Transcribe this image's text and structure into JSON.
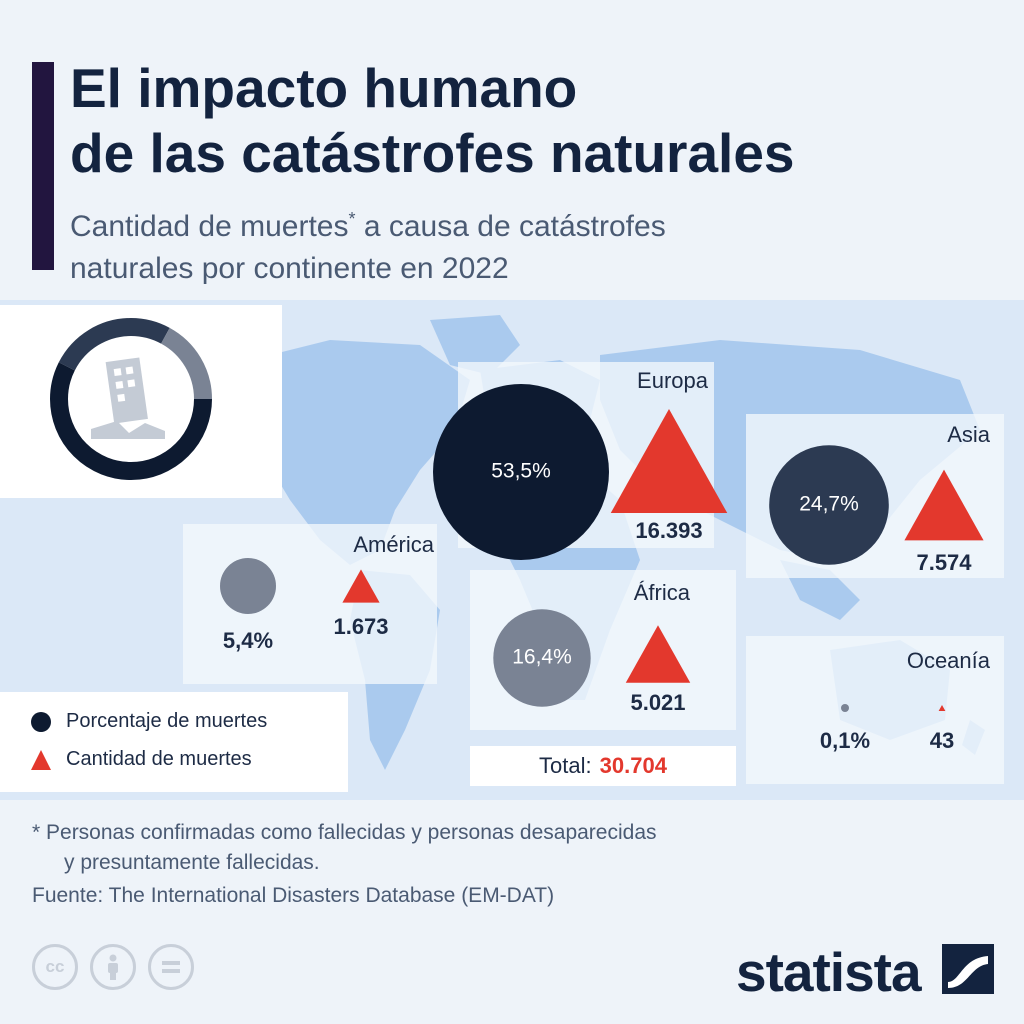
{
  "header": {
    "title_line1": "El impacto humano",
    "title_line2": "de las catástrofes naturales",
    "subtitle_part1": "Cantidad de muertes",
    "subtitle_marker": "*",
    "subtitle_part2": " a causa de catástrofes",
    "subtitle_line2": "naturales por continente en 2022"
  },
  "legend": {
    "percent_label": "Porcentaje de muertes",
    "count_label": "Cantidad de muertes"
  },
  "total": {
    "label": "Total:",
    "value": "30.704"
  },
  "footnote": {
    "line1": "* Personas confirmadas como fallecidas y personas desaparecidas",
    "line2": "y presuntamente fallecidas."
  },
  "source": "Fuente: The International Disasters Database (EM-DAT)",
  "brand": "statista",
  "license_icons": [
    "cc-icon",
    "attribution-icon",
    "no-derivatives-icon"
  ],
  "colors": {
    "title": "#13233f",
    "accent_bar": "#22153f",
    "triangle": "#e3382d",
    "circle_europe": "#0d1a30",
    "circle_asia": "#2c3a52",
    "circle_africa": "#7a8394",
    "circle_america": "#7a8394",
    "circle_oceania": "#7a8394",
    "map_land": "#aacaee",
    "map_bg": "#dbe8f7"
  },
  "chart_data": {
    "type": "bubble-map",
    "title": "El impacto humano de las catástrofes naturales",
    "metrics": [
      "Porcentaje de muertes",
      "Cantidad de muertes"
    ],
    "total_deaths": 30704,
    "series": [
      {
        "name": "Europa",
        "percent": 53.5,
        "percent_label": "53,5%",
        "deaths": 16393,
        "deaths_label": "16.393"
      },
      {
        "name": "Asia",
        "percent": 24.7,
        "percent_label": "24,7%",
        "deaths": 7574,
        "deaths_label": "7.574"
      },
      {
        "name": "África",
        "percent": 16.4,
        "percent_label": "16,4%",
        "deaths": 5021,
        "deaths_label": "5.021"
      },
      {
        "name": "América",
        "percent": 5.4,
        "percent_label": "5,4%",
        "deaths": 1673,
        "deaths_label": "1.673"
      },
      {
        "name": "Oceanía",
        "percent": 0.1,
        "percent_label": "0,1%",
        "deaths": 43,
        "deaths_label": "43"
      }
    ]
  }
}
